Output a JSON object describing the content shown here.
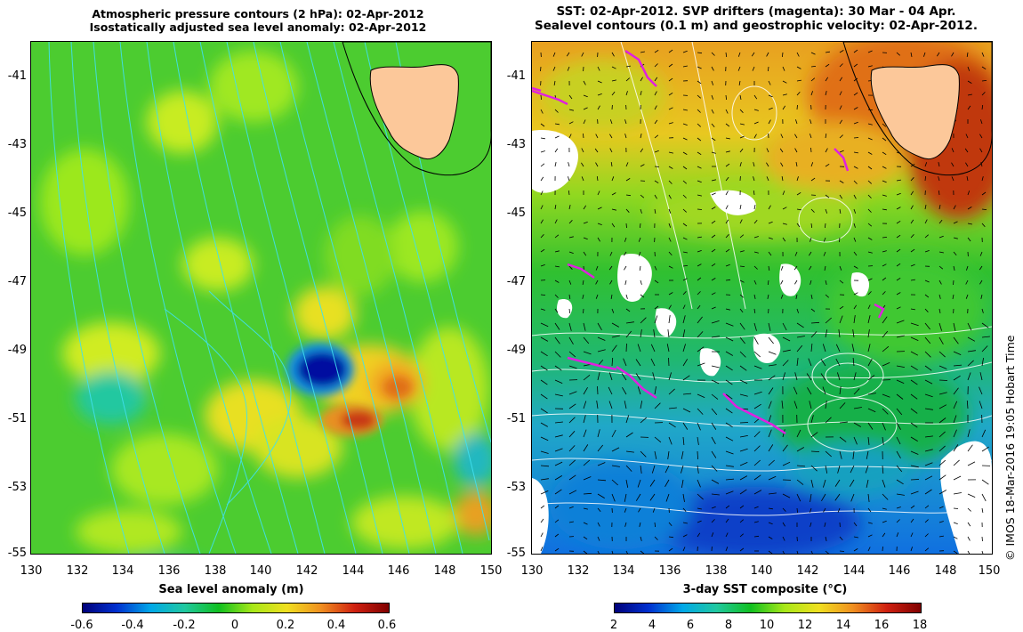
{
  "left_panel": {
    "title_line1": "Atmospheric pressure contours (2 hPa): 02-Apr-2012",
    "title_line2": "Isostatically adjusted sea level anomaly: 02-Apr-2012",
    "colorbar_label": "Sea level anomaly (m)",
    "colorbar_ticks": [
      "-0.6",
      "-0.4",
      "-0.2",
      "0",
      "0.2",
      "0.4",
      "0.6"
    ],
    "colorbar_colors": [
      "#00007a",
      "#0030d0",
      "#00a8e8",
      "#20c8a0",
      "#10c020",
      "#a8e818",
      "#f0e020",
      "#f09020",
      "#d02010",
      "#800000"
    ]
  },
  "right_panel": {
    "title_line1": "SST: 02-Apr-2012. SVP drifters (magenta): 30 Mar - 04 Apr.",
    "title_line2": "Sealevel contours (0.1 m) and geostrophic velocity: 02-Apr-2012.",
    "colorbar_label": "3-day SST composite (°C)",
    "colorbar_ticks": [
      "2",
      "4",
      "6",
      "8",
      "10",
      "12",
      "14",
      "16",
      "18"
    ],
    "colorbar_colors": [
      "#00007a",
      "#0030d0",
      "#00a8e8",
      "#20c8a0",
      "#10c020",
      "#a8e818",
      "#f0e020",
      "#f09020",
      "#d02010",
      "#800000"
    ]
  },
  "y_ticks": [
    "-41",
    "-43",
    "-45",
    "-47",
    "-49",
    "-51",
    "-53",
    "-55"
  ],
  "x_ticks": [
    "130",
    "132",
    "134",
    "136",
    "138",
    "140",
    "142",
    "144",
    "146",
    "148",
    "150"
  ],
  "credit": "© IMOS 18-Mar-2016 19:05 Hobart Time",
  "colors": {
    "land": "#fcc89a",
    "drifter": "#e020e0",
    "pressure_contour": "#40e0f0",
    "sealevel_contour": "#ffffff"
  }
}
